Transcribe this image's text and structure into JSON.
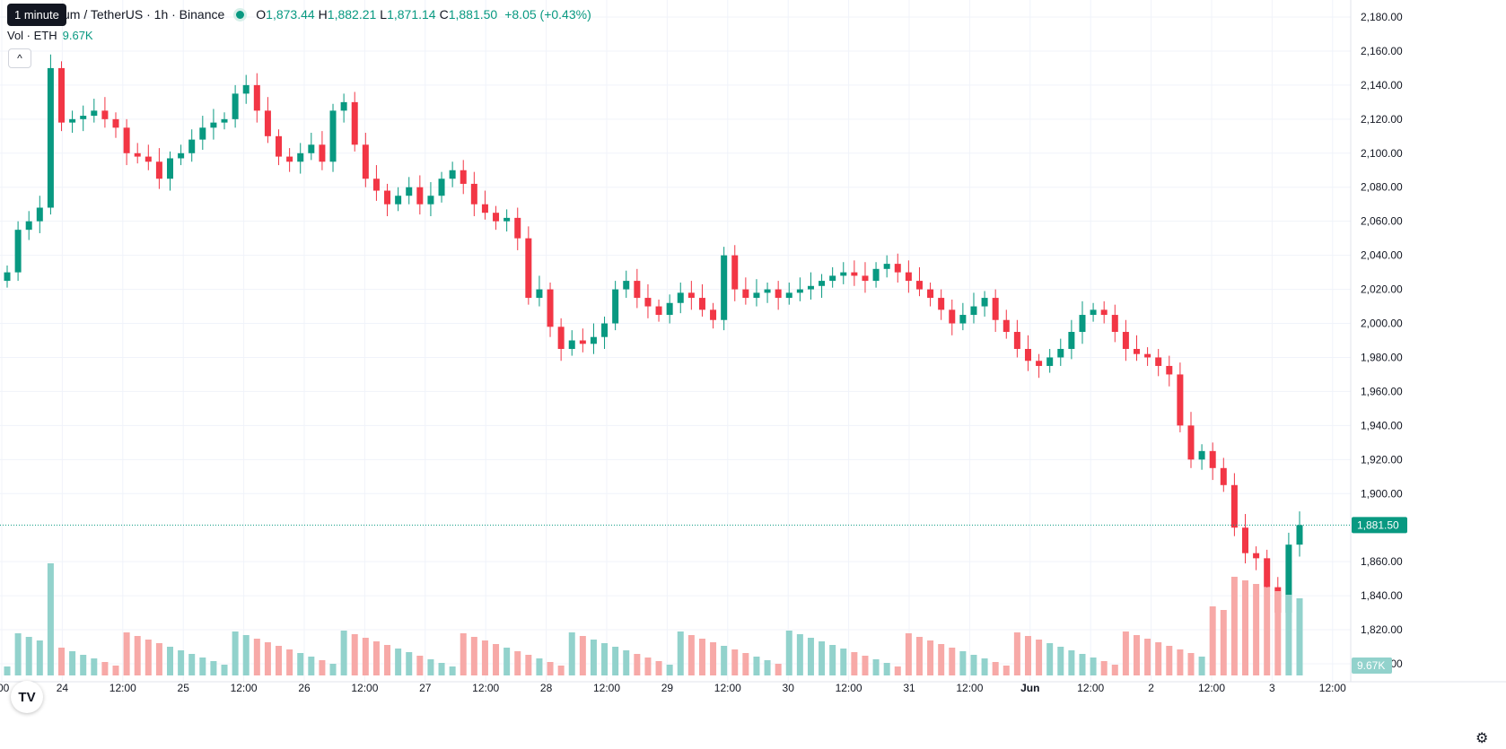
{
  "legend": {
    "title": "um / TetherUS · 1h · Binance",
    "o_label": "O",
    "o": "1,873.44",
    "h_label": "H",
    "h": "1,882.21",
    "l_label": "L",
    "l": "1,871.14",
    "c_label": "C",
    "c": "1,881.50",
    "change": "+8.05 (+0.43%)"
  },
  "volume": {
    "label": "Vol · ETH",
    "value": "9.67K"
  },
  "tooltip": "1 minute",
  "collapse_icon": "^",
  "logo": "TV",
  "settings_icon": "⚙",
  "colors": {
    "up": "#089981",
    "down": "#f23645",
    "up_vol": "#92d2cc",
    "down_vol": "#f7a9a7",
    "grid": "#f0f3fa",
    "price_tag": "#089981"
  },
  "chart_data": {
    "type": "candlestick",
    "y_axis": {
      "ticks": [
        "2,180.00",
        "2,160.00",
        "2,140.00",
        "2,120.00",
        "2,100.00",
        "2,080.00",
        "2,060.00",
        "2,040.00",
        "2,020.00",
        "2,000.00",
        "1,980.00",
        "1,960.00",
        "1,940.00",
        "1,920.00",
        "1,900.00",
        "1,860.00",
        "1,840.00",
        "1,820.00",
        "1,800.00"
      ],
      "min": 1790,
      "max": 2190
    },
    "x_axis": {
      "ticks": [
        ":00",
        "24",
        "12:00",
        "25",
        "12:00",
        "26",
        "12:00",
        "27",
        "12:00",
        "28",
        "12:00",
        "29",
        "12:00",
        "30",
        "12:00",
        "31",
        "12:00",
        "Jun",
        "12:00",
        "2",
        "12:00",
        "3",
        "12:00"
      ]
    },
    "last_price": "1,881.50",
    "last_volume": "9.67K",
    "candles": [
      [
        1.0,
        1.0,
        1.0,
        1.0,
        0.0
      ],
      [
        1.0,
        0.99,
        1.0,
        0.99,
        0.0
      ],
      [
        0.99,
        0.99,
        1.0,
        1.0,
        0.01
      ],
      [
        0.99,
        0.99,
        1.0,
        1.0,
        0.01
      ],
      [
        1.0,
        0.99,
        1.0,
        1.0,
        0.0
      ],
      [
        1.0,
        1.0,
        1.0,
        1.0,
        0.01
      ],
      [
        1.0,
        0.99,
        1.0,
        1.0,
        0.01
      ],
      [
        1.0,
        1.0,
        1.0,
        1.0,
        0.0
      ],
      [
        1.0,
        1.0,
        1.0,
        1.0,
        0.01
      ],
      [
        1.0,
        1.0,
        1.0,
        1.0,
        0.01
      ],
      [
        1.0,
        0.99,
        1.0,
        1.0,
        0.0
      ],
      [
        1.0,
        1.0,
        1.0,
        1.0,
        0.0
      ],
      [
        1.0,
        1.0,
        1.0,
        1.0,
        0.0
      ],
      [
        1.0,
        1.0,
        1.0,
        1.0,
        0.0
      ],
      [
        1.0,
        1.0,
        1.0,
        1.0,
        0.01
      ],
      [
        1.0,
        0.99,
        1.0,
        1.0,
        0.01
      ],
      [
        1.0,
        1.0,
        1.0,
        1.0,
        0.01
      ],
      [
        1.0,
        1.0,
        1.0,
        1.0,
        0.0
      ],
      [
        1.0,
        1.0,
        1.0,
        1.0,
        0.0
      ],
      [
        1.0,
        1.0,
        1.0,
        1.0,
        0.0
      ],
      [
        1.0,
        1.0,
        1.0,
        1.0,
        0.0
      ],
      [
        1.0,
        1.0,
        1.0,
        1.0,
        0.01
      ],
      [
        1.0,
        1.0,
        1.0,
        1.0,
        0.0
      ],
      [
        1.0,
        1.0,
        1.0,
        1.0,
        0.0
      ],
      [
        1.0,
        1.0,
        1.0,
        1.0,
        0.01
      ],
      [
        1.0,
        1.0,
        1.0,
        1.0,
        0.0
      ],
      [
        1.0,
        1.0,
        1.0,
        1.0,
        0.0
      ],
      [
        1.0,
        1.0,
        1.0,
        1.0,
        0.0
      ],
      [
        1.0,
        1.0,
        1.0,
        1.0,
        0.0
      ],
      [
        1.0,
        1.0,
        1.0,
        1.0,
        0.01
      ],
      [
        1.0,
        1.0,
        1.0,
        1.0,
        0.01
      ],
      [
        1.0,
        1.0,
        1.0,
        1.0,
        0.0
      ],
      [
        1.0,
        1.0,
        1.0,
        1.0,
        0.0
      ],
      [
        1.0,
        1.0,
        1.0,
        1.0,
        0.0
      ],
      [
        1.0,
        1.0,
        1.0,
        1.0,
        0.0
      ],
      [
        1.0,
        1.0,
        1.0,
        1.0,
        0.01
      ],
      [
        1.0,
        1.0,
        1.0,
        1.0,
        0.0
      ],
      [
        1.0,
        1.0,
        1.0,
        1.0,
        0.0
      ],
      [
        1.0,
        1.0,
        1.0,
        1.0,
        0.0
      ],
      [
        1.0,
        1.0,
        1.0,
        1.0,
        0.0
      ],
      [
        1.0,
        1.0,
        1.0,
        1.0,
        0.0
      ],
      [
        1.0,
        1.0,
        1.0,
        1.0,
        0.0
      ],
      [
        1.0,
        1.0,
        1.0,
        1.0,
        0.0
      ],
      [
        1.0,
        1.0,
        1.0,
        1.0,
        0.01
      ],
      [
        1.0,
        1.0,
        1.0,
        1.0,
        0.0
      ],
      [
        1.0,
        1.0,
        1.0,
        1.0,
        0.01
      ],
      [
        1.0,
        1.0,
        1.0,
        1.0,
        0.0
      ],
      [
        1.0,
        1.0,
        1.0,
        1.0,
        0.0
      ],
      [
        1.0,
        1.0,
        1.0,
        1.0,
        0.0
      ],
      [
        1.0,
        1.0,
        1.0,
        1.0,
        0.0
      ]
    ]
  }
}
